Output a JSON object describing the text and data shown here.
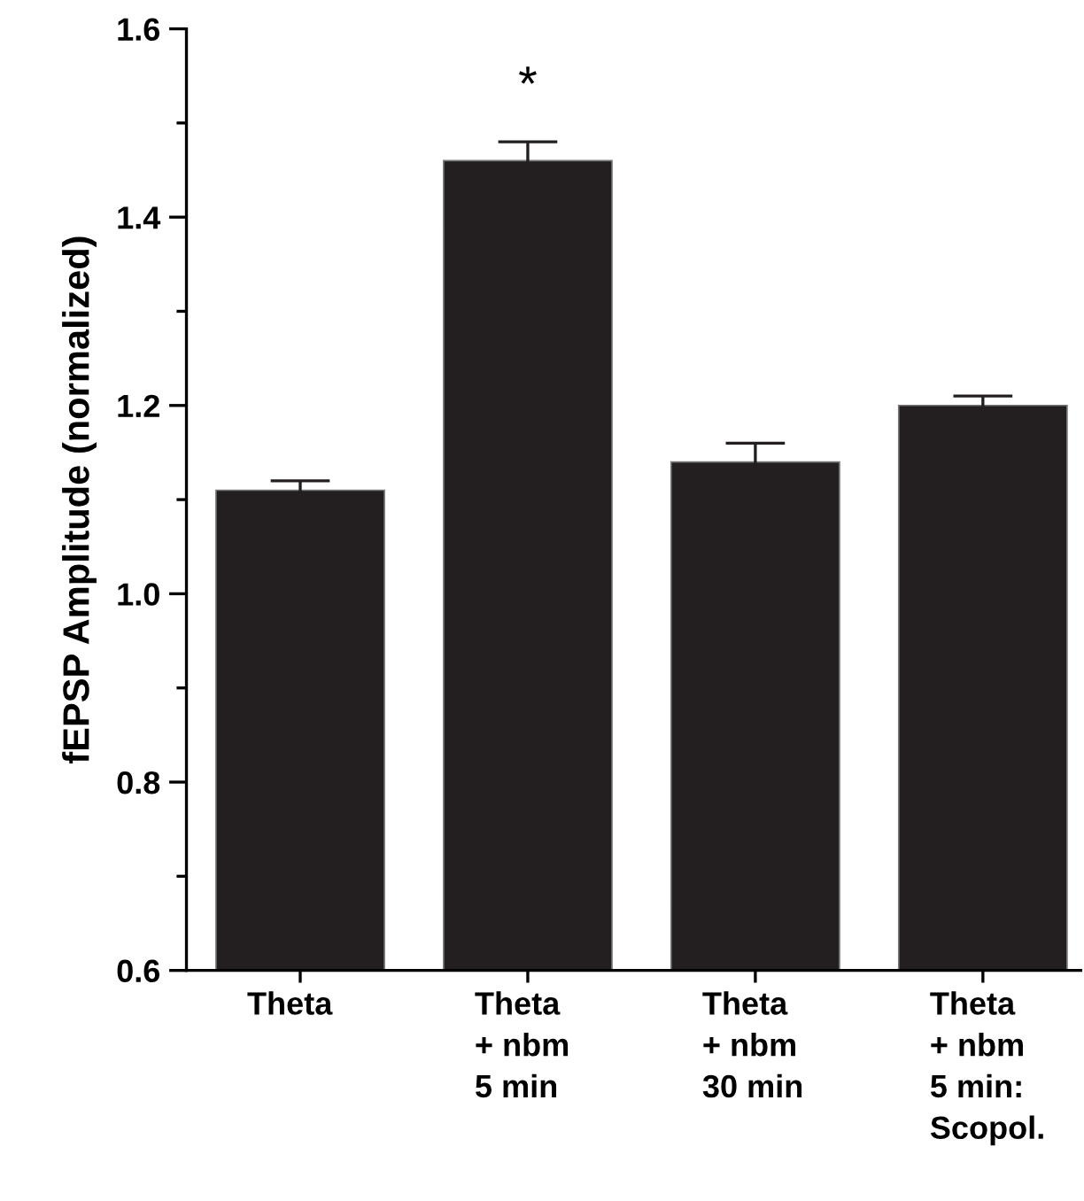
{
  "chart_data": {
    "type": "bar",
    "ylabel": "fEPSP Amplitude (normalized)",
    "categories": [
      "Theta",
      "Theta\n+ nbm\n5 min",
      "Theta\n+ nbm\n30 min",
      "Theta\n+ nbm\n5 min:\nScopol."
    ],
    "values": [
      1.11,
      1.46,
      1.14,
      1.2
    ],
    "errors": [
      0.01,
      0.02,
      0.02,
      0.01
    ],
    "color": "#231f20",
    "ylim": [
      0.6,
      1.6
    ],
    "yticks": [
      0.6,
      {
        "value": 0.7,
        "label": null
      },
      0.8,
      {
        "value": 0.9,
        "label": null
      },
      {
        "value": 1.0,
        "label": "1.0"
      },
      {
        "value": 1.1,
        "label": null
      },
      1.2,
      {
        "value": 1.3,
        "label": null
      },
      1.4,
      {
        "value": 1.5,
        "label": null
      },
      1.6
    ],
    "annotations": [
      "*"
    ],
    "grid": false,
    "legend": false
  }
}
